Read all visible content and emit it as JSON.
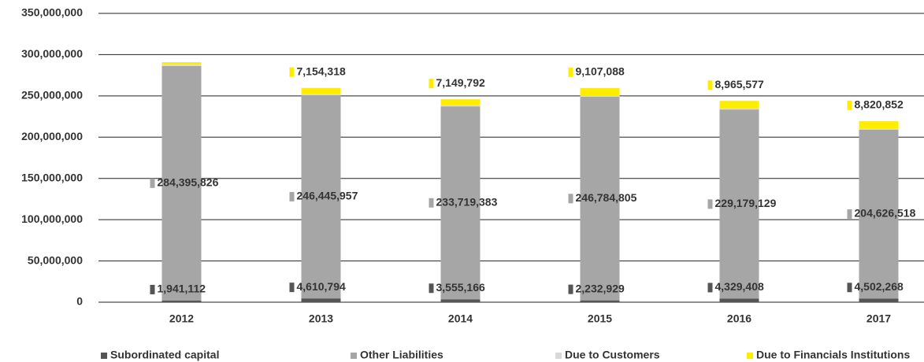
{
  "chart_data": {
    "type": "bar",
    "stacked": true,
    "categories": [
      "2012",
      "2013",
      "2014",
      "2015",
      "2016",
      "2017"
    ],
    "series": [
      {
        "name": "Subordinated capital",
        "color": "#555555",
        "values": [
          1941112,
          4610794,
          3555166,
          2232929,
          4329408,
          4502268
        ],
        "value_labels": [
          "1,941,112",
          "4,610,794",
          "3,555,166",
          "2,232,929",
          "4,329,408",
          "4,502,268"
        ]
      },
      {
        "name": "Other Liabilities",
        "color": "#a6a6a6",
        "values": [
          284395826,
          246445957,
          233719383,
          246784805,
          229179129,
          204626518
        ],
        "value_labels": [
          "284,395,826",
          "246,445,957",
          "233,719,383",
          "246,784,805",
          "229,179,129",
          "204,626,518"
        ]
      },
      {
        "name": "Due to Customers",
        "color": "#d9d9d9",
        "values": [
          1500000,
          1500000,
          1500000,
          1500000,
          1500000,
          1500000
        ]
      },
      {
        "name": "Due to Financials Institutions",
        "color": "#ffed00",
        "values": [
          3000000,
          7154318,
          7149792,
          9107088,
          8965577,
          8820852
        ],
        "value_labels": [
          null,
          "7,154,318",
          "7,149,792",
          "9,107,088",
          "8,965,577",
          "8,820,852"
        ]
      }
    ],
    "ylim": [
      0,
      350000000
    ],
    "yticks": [
      0,
      {
        "value": 50000000,
        "label": "50,000,000"
      },
      {
        "value": 100000000,
        "label": "100,000,000"
      },
      {
        "value": 150000000,
        "label": "150,000,000"
      },
      {
        "value": 200000000,
        "label": "200,000,000"
      },
      {
        "value": 250000000,
        "label": "250,000,000"
      },
      {
        "value": 300000000,
        "label": "300,000,000"
      },
      {
        "value": 350000000,
        "label": "350,000,000"
      }
    ],
    "grid": true,
    "legend": "bottom"
  }
}
